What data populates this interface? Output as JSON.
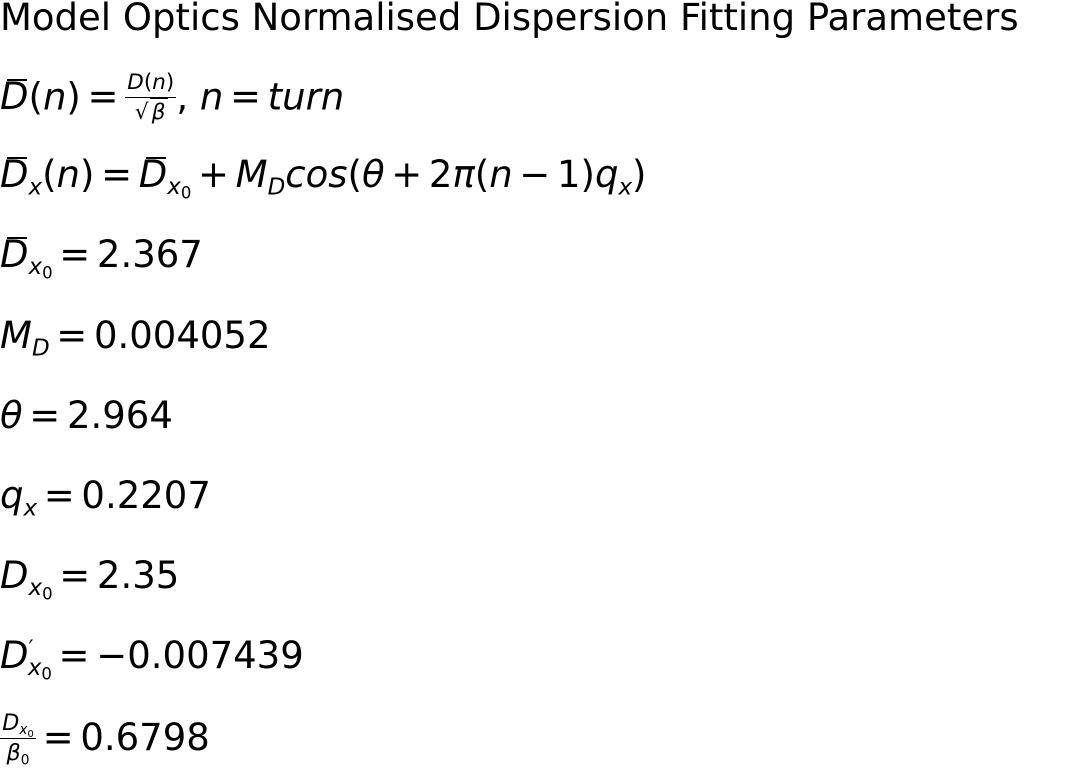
{
  "title": "Model Optics Normalised Dispersion Fitting Parameters",
  "definition": {
    "lhs": "D(n) =",
    "numerator": "D(n)",
    "denominator": "β",
    "tail": ", n = turn"
  },
  "model": {
    "formula": "D̄x(n) = D̄x0 + MD cos(θ + 2π(n − 1)qx)"
  },
  "parameters": {
    "dbar_x0": "2.367",
    "m_d": "0.004052",
    "theta": "2.964",
    "q_x": "0.2207",
    "d_x0": "2.35",
    "d_prime_x0": "−0.007439",
    "d_x0_over_beta0": "0.6798"
  }
}
